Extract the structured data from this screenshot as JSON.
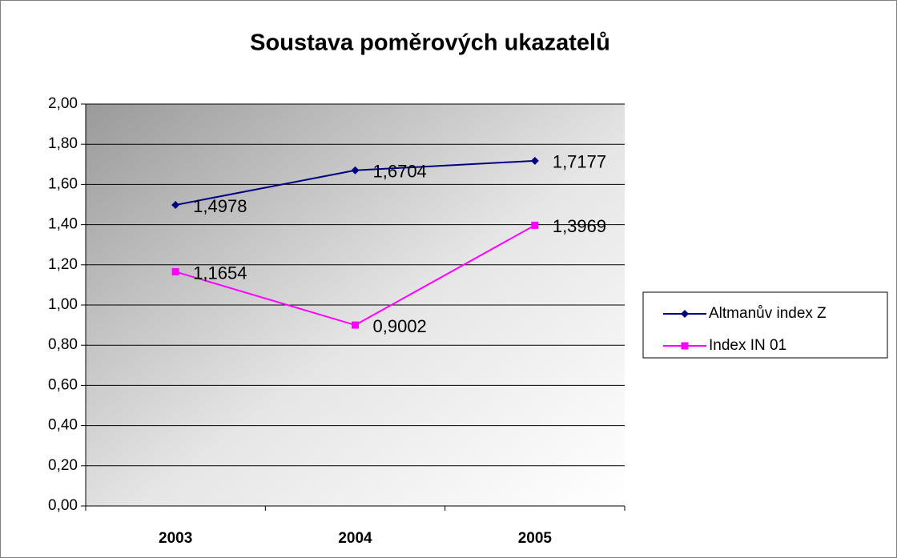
{
  "chart_data": {
    "type": "line",
    "title": "Soustava poměrových ukazatelů",
    "categories": [
      "2003",
      "2004",
      "2005"
    ],
    "series": [
      {
        "name": "Altmanův index Z",
        "color": "#000080",
        "marker": "diamond",
        "values": [
          1.4978,
          1.6704,
          1.7177
        ],
        "value_labels": [
          "1,4978",
          "1,6704",
          "1,7177"
        ]
      },
      {
        "name": "Index IN 01",
        "color": "#ff00ff",
        "marker": "square",
        "values": [
          1.1654,
          0.9002,
          1.3969
        ],
        "value_labels": [
          "1,1654",
          "0,9002",
          "1,3969"
        ]
      }
    ],
    "ylim": [
      0,
      2
    ],
    "yticks": [
      {
        "value": 0,
        "label": "0,00"
      },
      {
        "value": 0.2,
        "label": "0,20"
      },
      {
        "value": 0.4,
        "label": "0,40"
      },
      {
        "value": 0.6,
        "label": "0,60"
      },
      {
        "value": 0.8,
        "label": "0,80"
      },
      {
        "value": 1,
        "label": "1,00"
      },
      {
        "value": 1.2,
        "label": "1,20"
      },
      {
        "value": 1.4,
        "label": "1,40"
      },
      {
        "value": 1.6,
        "label": "1,60"
      },
      {
        "value": 1.8,
        "label": "1,80"
      },
      {
        "value": 2,
        "label": "2,00"
      }
    ],
    "grid": true,
    "legend": "right"
  }
}
